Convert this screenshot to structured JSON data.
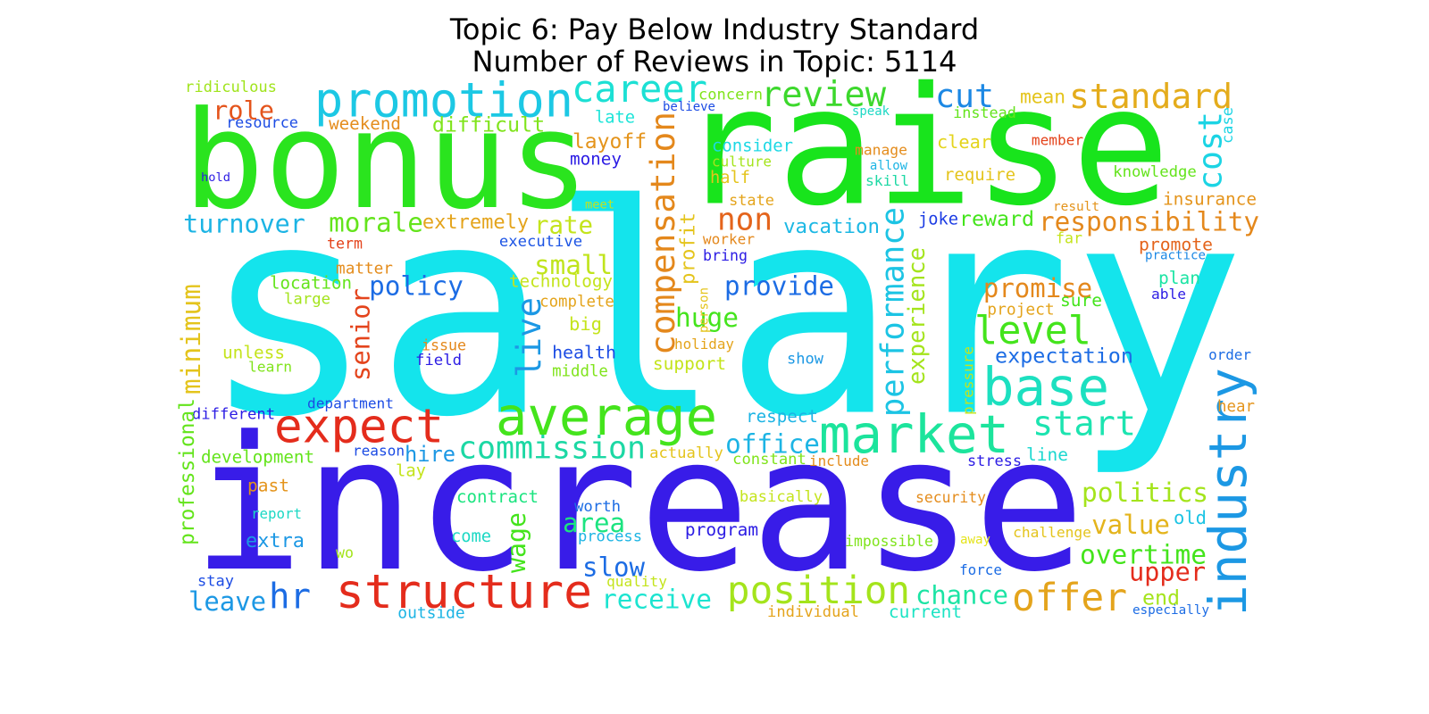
{
  "header": {
    "title": "Topic 6: Pay Below Industry Standard",
    "subtitle": "Number of Reviews in Topic: 5114"
  },
  "words": [
    {
      "text": "salary",
      "color": "#14e4ec"
    },
    {
      "text": "increase",
      "color": "#381ce8"
    },
    {
      "text": "bonus",
      "color": "#2ae41e"
    },
    {
      "text": "raise",
      "color": "#18e41c"
    },
    {
      "text": "promotion",
      "color": "#1cc8e4"
    },
    {
      "text": "career",
      "color": "#1ce0d4"
    },
    {
      "text": "review",
      "color": "#3cd82c"
    },
    {
      "text": "cut",
      "color": "#1c88e4"
    },
    {
      "text": "standard",
      "color": "#e4ac1c"
    },
    {
      "text": "average",
      "color": "#44e41c"
    },
    {
      "text": "market",
      "color": "#1ce49c"
    },
    {
      "text": "expect",
      "color": "#e42c1c"
    },
    {
      "text": "base",
      "color": "#1ce0c0"
    },
    {
      "text": "industry",
      "color": "#1c98e4"
    },
    {
      "text": "structure",
      "color": "#e42c1c"
    },
    {
      "text": "position",
      "color": "#a4e41c"
    },
    {
      "text": "offer",
      "color": "#e4a41c"
    },
    {
      "text": "commission",
      "color": "#1cd8a4"
    },
    {
      "text": "compensation",
      "color": "#e4881c"
    },
    {
      "text": "performance",
      "color": "#1cc4e4"
    },
    {
      "text": "level",
      "color": "#44e41c"
    },
    {
      "text": "start",
      "color": "#1ce4b0"
    },
    {
      "text": "hr",
      "color": "#1c6ce4"
    },
    {
      "text": "role",
      "color": "#e4541c"
    },
    {
      "text": "difficult",
      "color": "#80e41c"
    },
    {
      "text": "ridiculous",
      "color": "#a0e41c"
    },
    {
      "text": "resource",
      "color": "#1c4ce4"
    },
    {
      "text": "weekend",
      "color": "#e48c1c"
    },
    {
      "text": "hold",
      "color": "#2c1ce4"
    },
    {
      "text": "turnover",
      "color": "#1cb4e4"
    },
    {
      "text": "morale",
      "color": "#64e41c"
    },
    {
      "text": "extremely",
      "color": "#e4a41c"
    },
    {
      "text": "rate",
      "color": "#c4e41c"
    },
    {
      "text": "layoff",
      "color": "#e4941c"
    },
    {
      "text": "late",
      "color": "#1ce4d8"
    },
    {
      "text": "money",
      "color": "#2c1ce4"
    },
    {
      "text": "non",
      "color": "#e4641c"
    },
    {
      "text": "responsibility",
      "color": "#e4881c"
    },
    {
      "text": "cost",
      "color": "#1cd4e4"
    },
    {
      "text": "vacation",
      "color": "#1cb8e4"
    },
    {
      "text": "reward",
      "color": "#44e41c"
    },
    {
      "text": "joke",
      "color": "#1c3ce4"
    },
    {
      "text": "term",
      "color": "#e4441c"
    },
    {
      "text": "executive",
      "color": "#1c54e4"
    },
    {
      "text": "small",
      "color": "#c0e41c"
    },
    {
      "text": "technology",
      "color": "#c4e41c"
    },
    {
      "text": "matter",
      "color": "#e48c1c"
    },
    {
      "text": "location",
      "color": "#64e41c"
    },
    {
      "text": "large",
      "color": "#a4e41c"
    },
    {
      "text": "policy",
      "color": "#1c6ce4"
    },
    {
      "text": "complete",
      "color": "#e4a41c"
    },
    {
      "text": "big",
      "color": "#c4e41c"
    },
    {
      "text": "live",
      "color": "#1c98e4"
    },
    {
      "text": "senior",
      "color": "#e4441c"
    },
    {
      "text": "minimum",
      "color": "#e4c41c"
    },
    {
      "text": "unless",
      "color": "#c4e41c"
    },
    {
      "text": "learn",
      "color": "#80e41c"
    },
    {
      "text": "issue",
      "color": "#e4881c"
    },
    {
      "text": "field",
      "color": "#2c1ce4"
    },
    {
      "text": "health",
      "color": "#1c4ce4"
    },
    {
      "text": "middle",
      "color": "#80e41c"
    },
    {
      "text": "holiday",
      "color": "#e4a41c"
    },
    {
      "text": "support",
      "color": "#c4e41c"
    },
    {
      "text": "huge",
      "color": "#44e41c"
    },
    {
      "text": "provide",
      "color": "#1c6ce4"
    },
    {
      "text": "profit",
      "color": "#e4c41c"
    },
    {
      "text": "person",
      "color": "#e4c41c"
    },
    {
      "text": "worker",
      "color": "#e4881c"
    },
    {
      "text": "bring",
      "color": "#2c1ce4"
    },
    {
      "text": "state",
      "color": "#e4a41c"
    },
    {
      "text": "meet",
      "color": "#c4e41c"
    },
    {
      "text": "half",
      "color": "#e4c41c"
    },
    {
      "text": "culture",
      "color": "#a4e41c"
    },
    {
      "text": "consider",
      "color": "#1cd8e4"
    },
    {
      "text": "concern",
      "color": "#80e41c"
    },
    {
      "text": "believe",
      "color": "#1c4ce4"
    },
    {
      "text": "manage",
      "color": "#e48c1c"
    },
    {
      "text": "allow",
      "color": "#1cb4e4"
    },
    {
      "text": "skill",
      "color": "#1cd8a4"
    },
    {
      "text": "speak",
      "color": "#1cd8c4"
    },
    {
      "text": "clear",
      "color": "#e4d41c"
    },
    {
      "text": "require",
      "color": "#e4c41c"
    },
    {
      "text": "instead",
      "color": "#64e41c"
    },
    {
      "text": "mean",
      "color": "#e4c41c"
    },
    {
      "text": "member",
      "color": "#e4441c"
    },
    {
      "text": "knowledge",
      "color": "#64e41c"
    },
    {
      "text": "case",
      "color": "#1cd4e4"
    },
    {
      "text": "insurance",
      "color": "#e4941c"
    },
    {
      "text": "result",
      "color": "#e4941c"
    },
    {
      "text": "far",
      "color": "#c4e41c"
    },
    {
      "text": "promote",
      "color": "#e4641c"
    },
    {
      "text": "practice",
      "color": "#1c88e4"
    },
    {
      "text": "plan",
      "color": "#1ce4a4"
    },
    {
      "text": "able",
      "color": "#2c1ce4"
    },
    {
      "text": "promise",
      "color": "#e4881c"
    },
    {
      "text": "sure",
      "color": "#44e41c"
    },
    {
      "text": "project",
      "color": "#e4a41c"
    },
    {
      "text": "experience",
      "color": "#a4e41c"
    },
    {
      "text": "expectation",
      "color": "#1c6ce4"
    },
    {
      "text": "pressure",
      "color": "#c4e41c"
    },
    {
      "text": "order",
      "color": "#1c6ce4"
    },
    {
      "text": "hear",
      "color": "#e4941c"
    },
    {
      "text": "show",
      "color": "#1c98e4"
    },
    {
      "text": "respect",
      "color": "#1cb4e4"
    },
    {
      "text": "office",
      "color": "#1cb4e4"
    },
    {
      "text": "department",
      "color": "#1c4ce4"
    },
    {
      "text": "different",
      "color": "#2c1ce4"
    },
    {
      "text": "professional",
      "color": "#64e41c"
    },
    {
      "text": "development",
      "color": "#64e41c"
    },
    {
      "text": "reason",
      "color": "#1c4ce4"
    },
    {
      "text": "hire",
      "color": "#1c98e4"
    },
    {
      "text": "lay",
      "color": "#c4e41c"
    },
    {
      "text": "actually",
      "color": "#e4c41c"
    },
    {
      "text": "constant",
      "color": "#80e41c"
    },
    {
      "text": "include",
      "color": "#e48c1c"
    },
    {
      "text": "stress",
      "color": "#2c1ce4"
    },
    {
      "text": "line",
      "color": "#1cd8d0"
    },
    {
      "text": "past",
      "color": "#e4941c"
    },
    {
      "text": "contract",
      "color": "#1ce480"
    },
    {
      "text": "basically",
      "color": "#c4e41c"
    },
    {
      "text": "security",
      "color": "#e48c1c"
    },
    {
      "text": "politics",
      "color": "#a4e41c"
    },
    {
      "text": "report",
      "color": "#1cd8c4"
    },
    {
      "text": "worth",
      "color": "#1c6ce4"
    },
    {
      "text": "wage",
      "color": "#44e41c"
    },
    {
      "text": "area",
      "color": "#1ce480"
    },
    {
      "text": "value",
      "color": "#e4b41c"
    },
    {
      "text": "old",
      "color": "#1cc4e4"
    },
    {
      "text": "extra",
      "color": "#1c98e4"
    },
    {
      "text": "come",
      "color": "#1cd8c4"
    },
    {
      "text": "process",
      "color": "#1cb4e4"
    },
    {
      "text": "program",
      "color": "#2c1ce4"
    },
    {
      "text": "impossible",
      "color": "#80e41c"
    },
    {
      "text": "away",
      "color": "#e4e41c"
    },
    {
      "text": "challenge",
      "color": "#e4c41c"
    },
    {
      "text": "overtime",
      "color": "#44e41c"
    },
    {
      "text": "wo",
      "color": "#a4e41c"
    },
    {
      "text": "slow",
      "color": "#1c6ce4"
    },
    {
      "text": "force",
      "color": "#1c6ce4"
    },
    {
      "text": "upper",
      "color": "#e42c1c"
    },
    {
      "text": "stay",
      "color": "#1c4ce4"
    },
    {
      "text": "quality",
      "color": "#c4e41c"
    },
    {
      "text": "chance",
      "color": "#1ce4a4"
    },
    {
      "text": "end",
      "color": "#a4e41c"
    },
    {
      "text": "leave",
      "color": "#1c98e4"
    },
    {
      "text": "receive",
      "color": "#1ce4d0"
    },
    {
      "text": "individual",
      "color": "#e4a41c"
    },
    {
      "text": "current",
      "color": "#1ce4c4"
    },
    {
      "text": "outside",
      "color": "#1cb4e4"
    },
    {
      "text": "especially",
      "color": "#1c6ce4"
    }
  ]
}
